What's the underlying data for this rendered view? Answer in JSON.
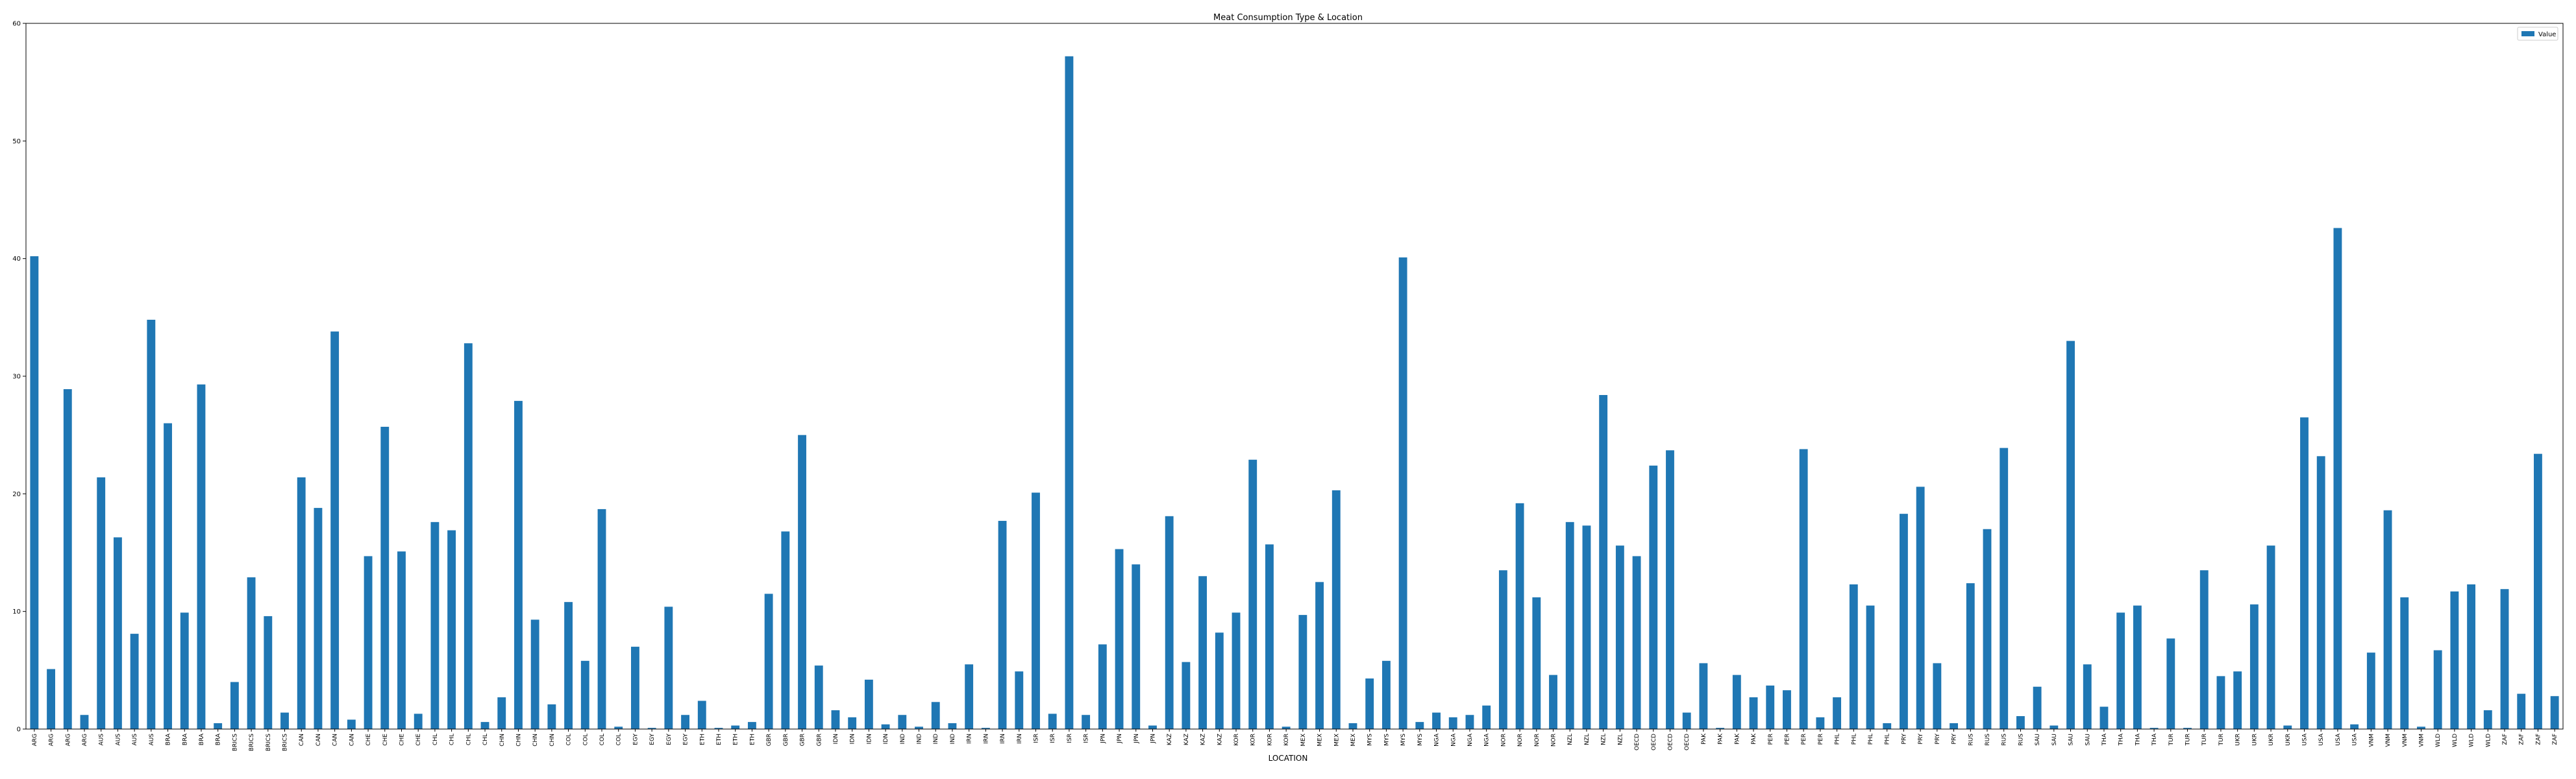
{
  "chart_data": {
    "type": "bar",
    "title": "Meat Consumption Type & Location",
    "xlabel": "LOCATION",
    "ylabel": "",
    "ylim": [
      0,
      60
    ],
    "yticks": [
      0,
      10,
      20,
      30,
      40,
      50,
      60
    ],
    "grid": false,
    "legend": {
      "position": "top-right",
      "entries": [
        "Value"
      ]
    },
    "color": "#1f77b4",
    "categories": [
      "ARG",
      "ARG",
      "ARG",
      "ARG",
      "AUS",
      "AUS",
      "AUS",
      "AUS",
      "BRA",
      "BRA",
      "BRA",
      "BRA",
      "BRICS",
      "BRICS",
      "BRICS",
      "BRICS",
      "CAN",
      "CAN",
      "CAN",
      "CAN",
      "CHE",
      "CHE",
      "CHE",
      "CHE",
      "CHL",
      "CHL",
      "CHL",
      "CHL",
      "CHN",
      "CHN",
      "CHN",
      "CHN",
      "COL",
      "COL",
      "COL",
      "COL",
      "EGY",
      "EGY",
      "EGY",
      "EGY",
      "ETH",
      "ETH",
      "ETH",
      "ETH",
      "GBR",
      "GBR",
      "GBR",
      "GBR",
      "IDN",
      "IDN",
      "IDN",
      "IDN",
      "IND",
      "IND",
      "IND",
      "IND",
      "IRN",
      "IRN",
      "IRN",
      "IRN",
      "ISR",
      "ISR",
      "ISR",
      "ISR",
      "JPN",
      "JPN",
      "JPN",
      "JPN",
      "KAZ",
      "KAZ",
      "KAZ",
      "KAZ",
      "KOR",
      "KOR",
      "KOR",
      "KOR",
      "MEX",
      "MEX",
      "MEX",
      "MEX",
      "MYS",
      "MYS",
      "MYS",
      "MYS",
      "NGA",
      "NGA",
      "NGA",
      "NGA",
      "NOR",
      "NOR",
      "NOR",
      "NOR",
      "NZL",
      "NZL",
      "NZL",
      "NZL",
      "OECD",
      "OECD",
      "OECD",
      "OECD",
      "PAK",
      "PAK",
      "PAK",
      "PAK",
      "PER",
      "PER",
      "PER",
      "PER",
      "PHL",
      "PHL",
      "PHL",
      "PHL",
      "PRY",
      "PRY",
      "PRY",
      "PRY",
      "RUS",
      "RUS",
      "RUS",
      "RUS",
      "SAU",
      "SAU",
      "SAU",
      "SAU",
      "THA",
      "THA",
      "THA",
      "THA",
      "TUR",
      "TUR",
      "TUR",
      "TUR",
      "UKR",
      "UKR",
      "UKR",
      "UKR",
      "USA",
      "USA",
      "USA",
      "USA",
      "VNM",
      "VNM",
      "VNM",
      "VNM",
      "WLD",
      "WLD",
      "WLD",
      "WLD",
      "ZAF",
      "ZAF",
      "ZAF",
      "ZAF"
    ],
    "series": [
      {
        "name": "Value",
        "values": [
          40.2,
          5.1,
          28.9,
          1.2,
          21.4,
          16.3,
          8.1,
          34.8,
          26.0,
          9.9,
          29.3,
          0.5,
          4.0,
          12.9,
          9.6,
          1.4,
          21.4,
          18.8,
          33.8,
          0.8,
          14.7,
          25.7,
          15.1,
          1.3,
          17.6,
          16.9,
          32.8,
          0.6,
          2.7,
          27.9,
          9.3,
          2.1,
          10.8,
          5.8,
          18.7,
          0.2,
          7.0,
          0.1,
          10.4,
          1.2,
          2.4,
          0.1,
          0.3,
          0.6,
          11.5,
          16.8,
          25.0,
          5.4,
          1.6,
          1.0,
          4.2,
          0.4,
          1.2,
          0.2,
          2.3,
          0.5,
          5.5,
          0.1,
          17.7,
          4.9,
          20.1,
          1.3,
          57.2,
          1.2,
          7.2,
          15.3,
          14.0,
          0.3,
          18.1,
          5.7,
          13.0,
          8.2,
          9.9,
          22.9,
          15.7,
          0.2,
          9.7,
          12.5,
          20.3,
          0.5,
          4.3,
          5.8,
          40.1,
          0.6,
          1.4,
          1.0,
          1.2,
          2.0,
          13.5,
          19.2,
          11.2,
          4.6,
          17.6,
          17.3,
          28.4,
          15.6,
          14.7,
          22.4,
          23.7,
          1.4,
          5.6,
          0.1,
          4.6,
          2.7,
          3.7,
          3.3,
          23.8,
          1.0,
          2.7,
          12.3,
          10.5,
          0.5,
          18.3,
          20.6,
          5.6,
          0.5,
          12.4,
          17.0,
          23.9,
          1.1,
          3.6,
          0.3,
          33.0,
          5.5,
          1.9,
          9.9,
          10.5,
          0.1,
          7.7,
          0.1,
          13.5,
          4.5,
          4.9,
          10.6,
          15.6,
          0.3,
          26.5,
          23.2,
          42.6,
          0.4,
          6.5,
          18.6,
          11.2,
          0.2,
          6.7,
          11.7,
          12.3,
          1.6,
          11.9,
          3.0,
          23.4,
          2.8
        ]
      }
    ]
  }
}
